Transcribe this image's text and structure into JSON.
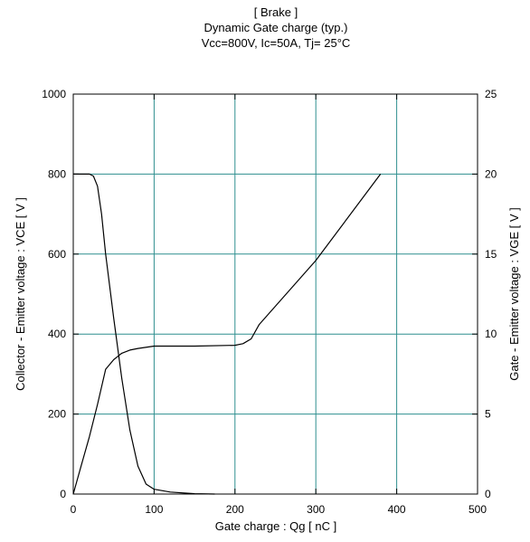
{
  "chart_data": {
    "type": "line",
    "title_lines": [
      "[ Brake ]",
      "Dynamic Gate charge  (typ.)",
      "Vcc=800V, Ic=50A, Tj= 25°C"
    ],
    "xlabel": "Gate charge  :  Qg  [ nC ]",
    "ylabel_left": "Collector - Emitter voltage  :  VCE  [ V ]",
    "ylabel_right": "Gate - Emitter voltage  :  VGE  [ V ]",
    "xlim": [
      0,
      500
    ],
    "ylim_left": [
      0,
      1000
    ],
    "ylim_right": [
      0,
      25
    ],
    "x_ticks": [
      "0",
      "100",
      "200",
      "300",
      "400",
      "500"
    ],
    "y_ticks_left": [
      "0",
      "200",
      "400",
      "600",
      "800",
      "1000"
    ],
    "y_ticks_right": [
      "0",
      "5",
      "10",
      "15",
      "20",
      "25"
    ],
    "grid": true,
    "colors": {
      "grid": "#2f8f8f",
      "line": "#000000",
      "frame": "#000000"
    },
    "series": [
      {
        "axis": "left",
        "x": [
          0,
          20,
          25,
          30,
          35,
          40,
          50,
          60,
          70,
          80,
          90,
          100,
          120,
          150,
          175
        ],
        "y": [
          800,
          800,
          795,
          770,
          700,
          600,
          440,
          290,
          160,
          70,
          25,
          12,
          5,
          1,
          0
        ]
      },
      {
        "axis": "right",
        "x": [
          0,
          10,
          20,
          30,
          40,
          50,
          60,
          70,
          80,
          100,
          150,
          200,
          210,
          220,
          230,
          300,
          380
        ],
        "y": [
          0,
          1.8,
          3.6,
          5.6,
          7.8,
          8.4,
          8.8,
          9.0,
          9.1,
          9.25,
          9.25,
          9.3,
          9.4,
          9.7,
          10.6,
          14.6,
          20.0
        ]
      }
    ]
  }
}
